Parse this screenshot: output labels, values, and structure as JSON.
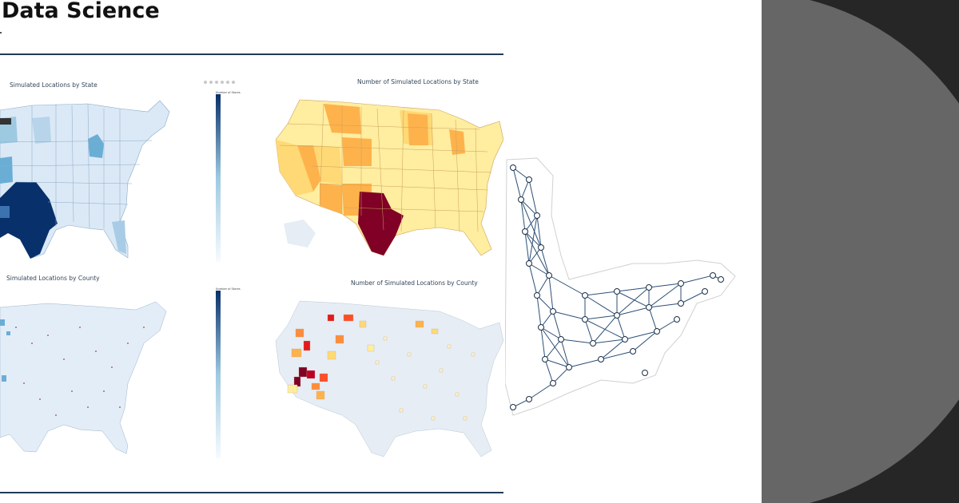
{
  "slide": {
    "title": "Data Science"
  },
  "figures": {
    "state_blue": {
      "title": "Simulated Locations by State",
      "colorbar_title": "Number of Stores"
    },
    "state_orange": {
      "title": "Number of Simulated Locations by State"
    },
    "county_blue": {
      "title": "Simulated Locations by County",
      "colorbar_title": "Number of Stores"
    },
    "county_orange": {
      "title": "Number of Simulated Locations by County"
    }
  },
  "colors": {
    "rule": "#1f3b57",
    "blue_light": "#dbe9f6",
    "blue_mid": "#9ecae1",
    "blue_dark": "#08306b",
    "ylorrd_light": "#ffeda0",
    "ylorrd_mid": "#feb24c",
    "ylorrd_dark": "#800026",
    "network_edge": "#2b4f76",
    "side_bg": "#262626",
    "side_circle": "#666666"
  },
  "icons": [
    "modebar-icon",
    "network-graph-icon"
  ]
}
